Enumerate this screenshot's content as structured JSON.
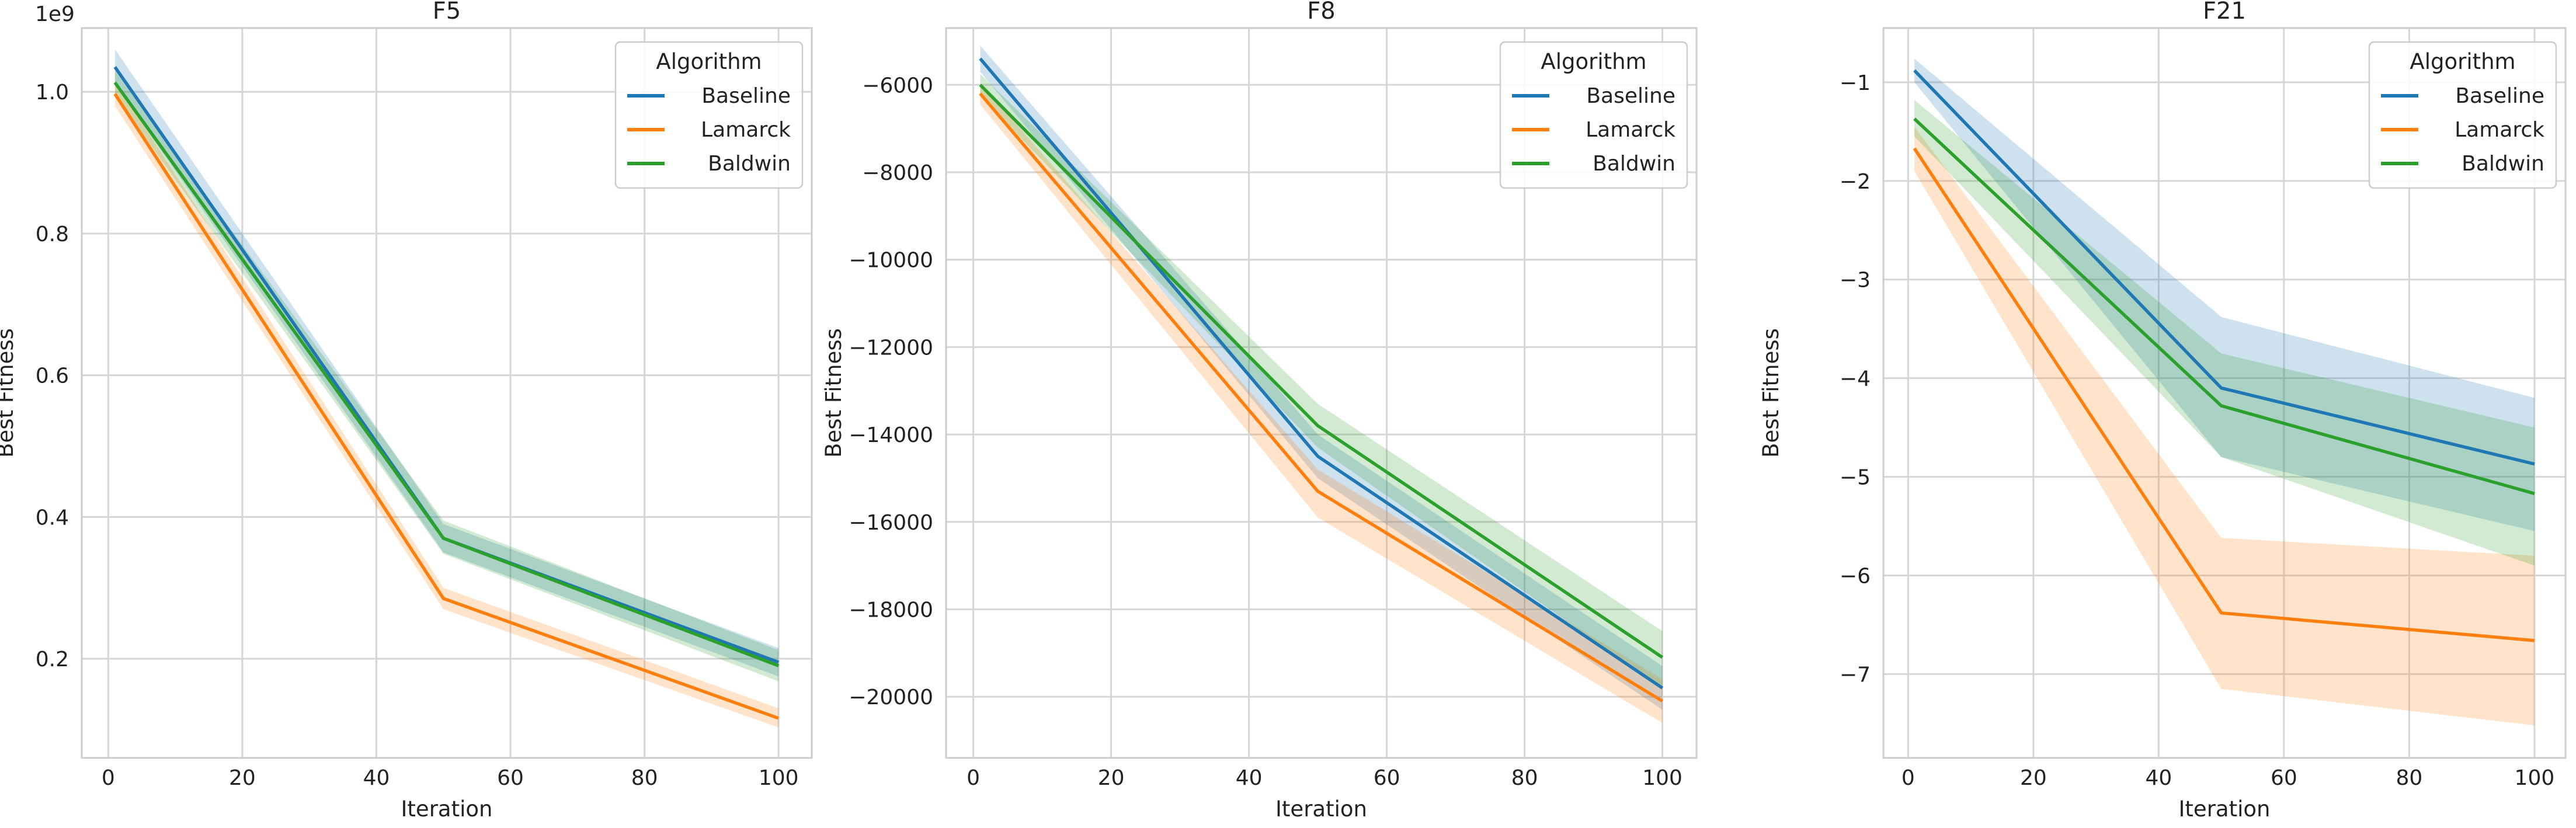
{
  "chart_data": [
    {
      "type": "line",
      "title": "F5",
      "xlabel": "Iteration",
      "ylabel": "Best Fitness",
      "y_offset_text": "1e9",
      "xlim": [
        -3.95,
        104.95
      ],
      "ylim": [
        0.06,
        1.09
      ],
      "x_ticks": [
        0,
        20,
        40,
        60,
        80,
        100
      ],
      "x_tick_labels": [
        "0",
        "20",
        "40",
        "60",
        "80",
        "100"
      ],
      "y_ticks": [
        0.2,
        0.4,
        0.6,
        0.8,
        1.0
      ],
      "y_tick_labels": [
        "0.2",
        "0.4",
        "0.6",
        "0.8",
        "1.0"
      ],
      "grid": true,
      "legend": {
        "title": "Algorithm",
        "placement": "top-right"
      },
      "x": [
        1,
        50,
        100
      ],
      "series": [
        {
          "name": "Baseline",
          "color": "#1f77b4",
          "values": [
            1.035,
            0.37,
            0.195
          ],
          "lower": [
            1.01,
            0.35,
            0.175
          ],
          "upper": [
            1.06,
            0.39,
            0.215
          ]
        },
        {
          "name": "Lamarck",
          "color": "#ff7f0e",
          "values": [
            0.997,
            0.285,
            0.116
          ],
          "lower": [
            0.98,
            0.27,
            0.103
          ],
          "upper": [
            1.015,
            0.3,
            0.13
          ]
        },
        {
          "name": "Baldwin",
          "color": "#2ca02c",
          "values": [
            1.013,
            0.37,
            0.19
          ],
          "lower": [
            0.995,
            0.348,
            0.168
          ],
          "upper": [
            1.03,
            0.395,
            0.212
          ]
        }
      ]
    },
    {
      "type": "line",
      "title": "F8",
      "xlabel": "Iteration",
      "ylabel": "Best Fitness",
      "y_offset_text": "",
      "xlim": [
        -3.95,
        104.95
      ],
      "ylim": [
        -21400,
        -4700
      ],
      "x_ticks": [
        0,
        20,
        40,
        60,
        80,
        100
      ],
      "x_tick_labels": [
        "0",
        "20",
        "40",
        "60",
        "80",
        "100"
      ],
      "y_ticks": [
        -20000,
        -18000,
        -16000,
        -14000,
        -12000,
        -10000,
        -8000,
        -6000
      ],
      "y_tick_labels": [
        "−20000",
        "−18000",
        "−16000",
        "−14000",
        "−12000",
        "−10000",
        "−8000",
        "−6000"
      ],
      "grid": true,
      "legend": {
        "title": "Algorithm",
        "placement": "top-right"
      },
      "x": [
        1,
        50,
        100
      ],
      "series": [
        {
          "name": "Baseline",
          "color": "#1f77b4",
          "values": [
            -5400,
            -14500,
            -19800
          ],
          "lower": [
            -5700,
            -15000,
            -20300
          ],
          "upper": [
            -5100,
            -14000,
            -19300
          ]
        },
        {
          "name": "Lamarck",
          "color": "#ff7f0e",
          "values": [
            -6200,
            -15300,
            -20100
          ],
          "lower": [
            -6450,
            -15900,
            -20600
          ],
          "upper": [
            -5950,
            -14800,
            -19600
          ]
        },
        {
          "name": "Baldwin",
          "color": "#2ca02c",
          "values": [
            -6000,
            -13800,
            -19100
          ],
          "lower": [
            -6250,
            -14300,
            -19800
          ],
          "upper": [
            -5750,
            -13300,
            -18500
          ]
        }
      ]
    },
    {
      "type": "line",
      "title": "F21",
      "xlabel": "Iteration",
      "ylabel": "Best Fitness",
      "y_offset_text": "",
      "xlim": [
        -3.95,
        104.95
      ],
      "ylim": [
        -7.85,
        -0.45
      ],
      "x_ticks": [
        0,
        20,
        40,
        60,
        80,
        100
      ],
      "x_tick_labels": [
        "0",
        "20",
        "40",
        "60",
        "80",
        "100"
      ],
      "y_ticks": [
        -7,
        -6,
        -5,
        -4,
        -3,
        -2,
        -1
      ],
      "y_tick_labels": [
        "−7",
        "−6",
        "−5",
        "−4",
        "−3",
        "−2",
        "−1"
      ],
      "grid": true,
      "legend": {
        "title": "Algorithm",
        "placement": "top-right"
      },
      "x": [
        1,
        50,
        100
      ],
      "series": [
        {
          "name": "Baseline",
          "color": "#1f77b4",
          "values": [
            -0.88,
            -4.1,
            -4.87
          ],
          "lower": [
            -1.0,
            -4.8,
            -5.55
          ],
          "upper": [
            -0.76,
            -3.38,
            -4.2
          ]
        },
        {
          "name": "Lamarck",
          "color": "#ff7f0e",
          "values": [
            -1.67,
            -6.38,
            -6.66
          ],
          "lower": [
            -1.9,
            -7.15,
            -7.52
          ],
          "upper": [
            -1.45,
            -5.62,
            -5.8
          ]
        },
        {
          "name": "Baldwin",
          "color": "#2ca02c",
          "values": [
            -1.37,
            -4.28,
            -5.17
          ],
          "lower": [
            -1.55,
            -4.8,
            -5.9
          ],
          "upper": [
            -1.18,
            -3.75,
            -4.5
          ]
        }
      ]
    }
  ]
}
